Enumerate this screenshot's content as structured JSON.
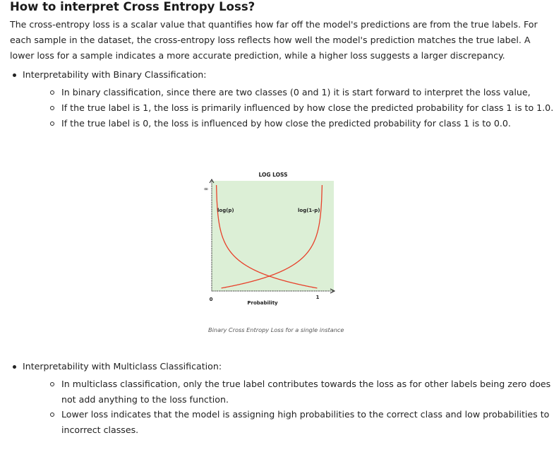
{
  "heading": "How to interpret Cross Entropy Loss?",
  "intro": [
    "The cross-entropy loss is a scalar value that quantifies how far off the model's predictions are from the true labels. For",
    "each sample in the dataset, the cross-entropy loss reflects how well the model's prediction matches the true label. A",
    "lower loss for a sample indicates a more accurate prediction, while a higher loss suggests a larger discrepancy."
  ],
  "sections": [
    {
      "title": "Interpretability with Binary Classification:",
      "items": [
        [
          "In binary classification, since there are two classes (0 and 1) it is start forward to interpret the loss value,"
        ],
        [
          "If the true label is 1, the loss is primarily influenced by how close the predicted probability for class 1 is to 1.0."
        ],
        [
          "If the true label is 0, the loss is influenced by how close the predicted probability for class 1 is to 0.0."
        ]
      ]
    },
    {
      "title": "Interpretability with Multiclass Classification:",
      "items": [
        [
          "In multiclass classification, only the true label contributes towards the loss as for other labels being zero does",
          "not add anything to the loss function."
        ],
        [
          "Lower loss indicates that the model is assigning high probabilities to the correct class and low probabilities to",
          "incorrect classes."
        ]
      ]
    }
  ],
  "figure": {
    "caption": "Binary Cross Entropy Loss for a single instance",
    "chart_data": {
      "type": "line",
      "title": "LOG LOSS",
      "xlabel": "Probability",
      "x_ticks": [
        "0",
        "1"
      ],
      "y_ticks": [
        "0",
        "∞"
      ],
      "series": [
        {
          "name": "log(p)",
          "formula": "-log(p)",
          "color": "#e8402a"
        },
        {
          "name": "log(1-p)",
          "formula": "-log(1-p)",
          "color": "#e8402a"
        }
      ],
      "background": "#dcefd6",
      "xlim": [
        0,
        1
      ]
    }
  }
}
